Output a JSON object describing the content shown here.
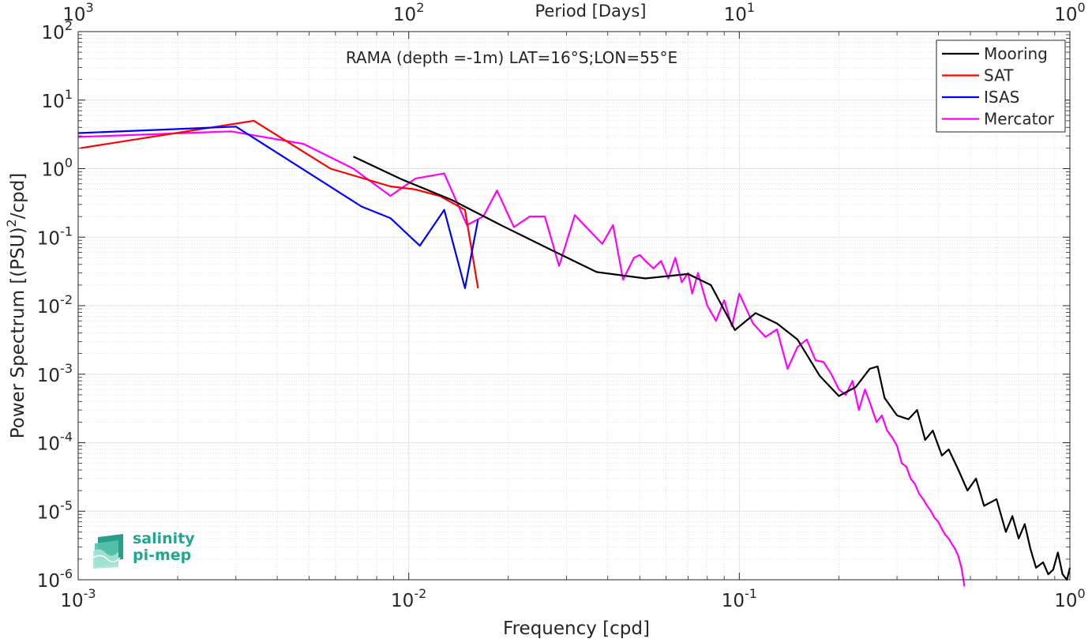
{
  "chart_data": {
    "type": "line",
    "title": "RAMA (depth =-1m) LAT=16°S;LON=55°E",
    "xlabel": "Frequency [cpd]",
    "ylabel": "Power Spectrum [(PSU)^2/cpd]",
    "top_xlabel": "Period [Days]",
    "xscale": "log",
    "yscale": "log",
    "xlim": [
      0.001,
      1
    ],
    "ylim": [
      1e-06,
      100
    ],
    "grid": true,
    "legend_position": "top-right",
    "x_tick_labels": [
      {
        "base": "10",
        "exp": "-3"
      },
      {
        "base": "10",
        "exp": "-2"
      },
      {
        "base": "10",
        "exp": "-1"
      },
      {
        "base": "10",
        "exp": "0"
      }
    ],
    "top_tick_labels": [
      {
        "base": "10",
        "exp": "3"
      },
      {
        "base": "10",
        "exp": "2"
      },
      {
        "base": "10",
        "exp": "1"
      },
      {
        "base": "10",
        "exp": "0"
      }
    ],
    "y_tick_labels": [
      {
        "base": "10",
        "exp": "-6"
      },
      {
        "base": "10",
        "exp": "-5"
      },
      {
        "base": "10",
        "exp": "-4"
      },
      {
        "base": "10",
        "exp": "-3"
      },
      {
        "base": "10",
        "exp": "-2"
      },
      {
        "base": "10",
        "exp": "-1"
      },
      {
        "base": "10",
        "exp": "0"
      },
      {
        "base": "10",
        "exp": "1"
      },
      {
        "base": "10",
        "exp": "2"
      }
    ],
    "series": [
      {
        "name": "Mooring",
        "color": "#000000",
        "x": [
          0.0068,
          0.0095,
          0.0135,
          0.019,
          0.027,
          0.037,
          0.052,
          0.07,
          0.082,
          0.097,
          0.112,
          0.13,
          0.15,
          0.175,
          0.2,
          0.225,
          0.248,
          0.262,
          0.275,
          0.3,
          0.325,
          0.345,
          0.365,
          0.385,
          0.41,
          0.43,
          0.46,
          0.49,
          0.52,
          0.55,
          0.6,
          0.64,
          0.67,
          0.7,
          0.73,
          0.76,
          0.79,
          0.83,
          0.86,
          0.89,
          0.92,
          0.95,
          0.98,
          1.0
        ],
        "y": [
          1.5,
          0.7,
          0.35,
          0.15,
          0.065,
          0.031,
          0.025,
          0.029,
          0.02,
          0.0044,
          0.0078,
          0.0055,
          0.0032,
          0.00095,
          0.00048,
          0.00065,
          0.0012,
          0.0013,
          0.00045,
          0.00025,
          0.00022,
          0.0003,
          0.00011,
          0.00015,
          6.5e-05,
          8e-05,
          4e-05,
          2e-05,
          3e-05,
          1.2e-05,
          1.5e-05,
          5e-06,
          8.5e-06,
          4e-06,
          6.5e-06,
          2.8e-06,
          1.5e-06,
          1.8e-06,
          1.2e-06,
          1.4e-06,
          2.5e-06,
          1.2e-06,
          1e-06,
          1.5e-06
        ]
      },
      {
        "name": "SAT",
        "color": "#ff0000",
        "x": [
          0.00102,
          0.0034,
          0.0058,
          0.0088,
          0.0104,
          0.0124,
          0.0148,
          0.0162
        ],
        "y": [
          2.0,
          5.0,
          1.0,
          0.55,
          0.5,
          0.4,
          0.25,
          0.018
        ]
      },
      {
        "name": "ISAS",
        "color": "#0000ff",
        "x": [
          0.001,
          0.003,
          0.0072,
          0.0088,
          0.0108,
          0.0128,
          0.0148,
          0.0162
        ],
        "y": [
          3.3,
          4.1,
          0.28,
          0.19,
          0.075,
          0.25,
          0.018,
          0.18
        ]
      },
      {
        "name": "Mercator",
        "color": "#ff00ff",
        "x": [
          0.001,
          0.0029,
          0.0048,
          0.0068,
          0.0088,
          0.0105,
          0.0128,
          0.015,
          0.0168,
          0.0185,
          0.0208,
          0.0232,
          0.0258,
          0.0285,
          0.0318,
          0.0355,
          0.0385,
          0.0415,
          0.0445,
          0.048,
          0.05,
          0.052,
          0.055,
          0.058,
          0.061,
          0.064,
          0.067,
          0.07,
          0.072,
          0.075,
          0.08,
          0.085,
          0.09,
          0.095,
          0.1,
          0.11,
          0.12,
          0.13,
          0.14,
          0.15,
          0.16,
          0.17,
          0.18,
          0.19,
          0.2,
          0.21,
          0.22,
          0.23,
          0.24,
          0.25,
          0.26,
          0.27,
          0.28,
          0.29,
          0.3,
          0.31,
          0.32,
          0.33,
          0.34,
          0.35,
          0.36,
          0.37,
          0.38,
          0.39,
          0.4,
          0.41,
          0.42,
          0.43,
          0.44,
          0.45,
          0.46,
          0.47,
          0.48
        ],
        "y": [
          2.9,
          3.5,
          2.3,
          1.0,
          0.4,
          0.72,
          0.85,
          0.15,
          0.2,
          0.48,
          0.14,
          0.2,
          0.2,
          0.038,
          0.21,
          0.12,
          0.08,
          0.15,
          0.024,
          0.05,
          0.055,
          0.045,
          0.035,
          0.045,
          0.025,
          0.05,
          0.022,
          0.03,
          0.015,
          0.03,
          0.01,
          0.006,
          0.012,
          0.005,
          0.015,
          0.0055,
          0.0035,
          0.0045,
          0.0012,
          0.0025,
          0.0032,
          0.0016,
          0.0015,
          0.001,
          0.0006,
          0.0005,
          0.0008,
          0.0003,
          0.0006,
          0.00035,
          0.0002,
          0.00025,
          0.00015,
          0.00012,
          9e-05,
          5e-05,
          4.5e-05,
          3e-05,
          2.5e-05,
          1.8e-05,
          1.5e-05,
          1.2e-05,
          1e-05,
          8e-06,
          7e-06,
          5.5e-06,
          4.5e-06,
          4e-06,
          3.3e-06,
          2.8e-06,
          2.2e-06,
          1.5e-06,
          8e-07
        ]
      }
    ]
  },
  "logo": {
    "line1": "salinity",
    "line2": "pi-mep",
    "color": "#1fa88f"
  }
}
